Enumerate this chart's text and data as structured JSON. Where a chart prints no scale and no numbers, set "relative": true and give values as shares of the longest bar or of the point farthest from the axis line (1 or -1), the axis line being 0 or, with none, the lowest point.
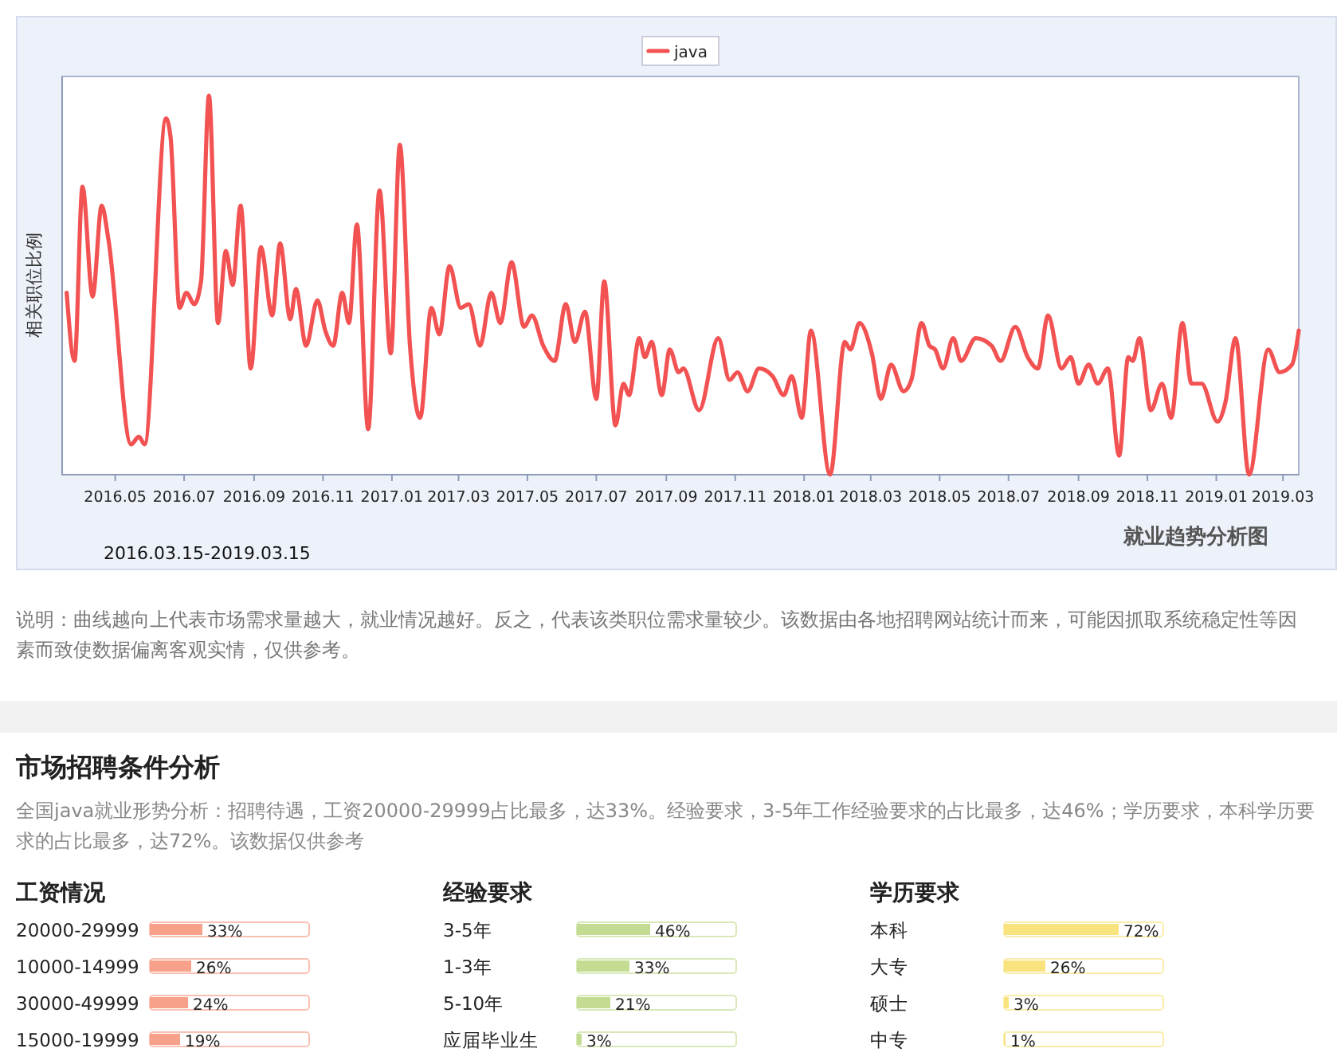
{
  "chart_data": [
    {
      "type": "line",
      "subtitle": "就业趋势分析图",
      "ylabel": "相关职位比例",
      "relative": true,
      "legend": "top",
      "annotations": [
        "2016.03.15-2019.03.15",
        "说明：曲线越向上代表市场需求量越大，就业情况越好。反之，代表该类职位需求量较少。该数据由各地招聘网站统计而来，可能因抓取系统稳定性等因素而致使数据偏离客观实情，仅供参考。"
      ],
      "xlim": [
        "2016-03-15",
        "2019-03-15"
      ],
      "xticks": [
        {
          "value": "2016-05",
          "label": "2016.05"
        },
        {
          "value": "2016-07",
          "label": "2016.07"
        },
        {
          "value": "2016-09",
          "label": "2016.09"
        },
        {
          "value": "2016-11",
          "label": "2016.11"
        },
        {
          "value": "2017-01",
          "label": "2017.01"
        },
        {
          "value": "2017-03",
          "label": "2017.03"
        },
        {
          "value": "2017-05",
          "label": "2017.05"
        },
        {
          "value": "2017-07",
          "label": "2017.07"
        },
        {
          "value": "2017-09",
          "label": "2017.09"
        },
        {
          "value": "2017-11",
          "label": "2017.11"
        },
        {
          "value": "2018-01",
          "label": "2018.01"
        },
        {
          "value": "2018-03",
          "label": "2018.03"
        },
        {
          "value": "2018-05",
          "label": "2018.05"
        },
        {
          "value": "2018-07",
          "label": "2018.07"
        },
        {
          "value": "2018-09",
          "label": "2018.09"
        },
        {
          "value": "2018-11",
          "label": "2018.11"
        },
        {
          "value": "2019-01",
          "label": "2019.01"
        },
        {
          "value": "2019-03",
          "label": "2019.03"
        }
      ],
      "x": [
        "2016-03-19",
        "2016-03-26",
        "2016-04-02",
        "2016-04-11",
        "2016-04-19",
        "2016-04-25",
        "2016-05-15",
        "2016-05-22",
        "2016-05-27",
        "2016-06-15",
        "2016-06-19",
        "2016-06-27",
        "2016-07-03",
        "2016-07-10",
        "2016-07-16",
        "2016-07-23",
        "2016-07-31",
        "2016-08-07",
        "2016-08-13",
        "2016-08-20",
        "2016-08-29",
        "2016-09-07",
        "2016-09-17",
        "2016-09-24",
        "2016-10-03",
        "2016-10-08",
        "2016-10-17",
        "2016-10-27",
        "2016-11-03",
        "2016-11-10",
        "2016-11-18",
        "2016-11-24",
        "2016-12-01",
        "2016-12-11",
        "2016-12-21",
        "2016-12-31",
        "2017-01-08",
        "2017-01-17",
        "2017-01-26",
        "2017-02-05",
        "2017-02-12",
        "2017-02-21",
        "2017-03-03",
        "2017-03-10",
        "2017-03-20",
        "2017-03-30",
        "2017-04-07",
        "2017-04-17",
        "2017-04-28",
        "2017-05-05",
        "2017-05-15",
        "2017-05-25",
        "2017-06-04",
        "2017-06-12",
        "2017-06-21",
        "2017-07-01",
        "2017-07-08",
        "2017-07-18",
        "2017-07-25",
        "2017-07-30",
        "2017-08-08",
        "2017-08-13",
        "2017-08-19",
        "2017-08-28",
        "2017-09-04",
        "2017-09-12",
        "2017-09-16",
        "2017-09-30",
        "2017-10-17",
        "2017-10-27",
        "2017-11-03",
        "2017-11-12",
        "2017-11-22",
        "2017-12-04",
        "2017-12-14",
        "2017-12-21",
        "2017-12-30",
        "2018-01-07",
        "2018-01-24",
        "2018-02-06",
        "2018-02-11",
        "2018-02-19",
        "2018-03-02",
        "2018-03-10",
        "2018-03-19",
        "2018-03-30",
        "2018-04-06",
        "2018-04-15",
        "2018-04-22",
        "2018-04-27",
        "2018-05-04",
        "2018-05-13",
        "2018-05-20",
        "2018-06-02",
        "2018-06-16",
        "2018-06-24",
        "2018-07-07",
        "2018-07-18",
        "2018-07-27",
        "2018-08-05",
        "2018-08-17",
        "2018-08-25",
        "2018-09-01",
        "2018-09-10",
        "2018-09-18",
        "2018-09-27",
        "2018-10-07",
        "2018-10-15",
        "2018-10-19",
        "2018-10-25",
        "2018-11-04",
        "2018-11-14",
        "2018-11-22",
        "2018-12-02",
        "2018-12-10",
        "2018-12-19",
        "2019-01-02",
        "2019-01-09",
        "2019-01-18",
        "2019-01-30",
        "2019-02-16",
        "2019-02-26",
        "2019-03-09",
        "2019-03-15"
      ],
      "series": [
        {
          "name": "java",
          "color": "#f25252",
          "values": [
            0.48,
            0.3,
            0.76,
            0.47,
            0.71,
            0.62,
            0.08,
            0.1,
            0.08,
            0.94,
            0.89,
            0.44,
            0.48,
            0.45,
            0.51,
            1.0,
            0.4,
            0.59,
            0.5,
            0.71,
            0.28,
            0.6,
            0.42,
            0.61,
            0.41,
            0.49,
            0.34,
            0.46,
            0.38,
            0.34,
            0.48,
            0.4,
            0.66,
            0.12,
            0.75,
            0.32,
            0.87,
            0.34,
            0.15,
            0.44,
            0.37,
            0.55,
            0.44,
            0.45,
            0.34,
            0.48,
            0.4,
            0.56,
            0.39,
            0.42,
            0.34,
            0.3,
            0.45,
            0.35,
            0.43,
            0.2,
            0.51,
            0.13,
            0.24,
            0.21,
            0.36,
            0.31,
            0.35,
            0.21,
            0.33,
            0.27,
            0.28,
            0.17,
            0.36,
            0.25,
            0.27,
            0.22,
            0.28,
            0.26,
            0.21,
            0.26,
            0.15,
            0.38,
            0,
            0.35,
            0.33,
            0.4,
            0.32,
            0.2,
            0.29,
            0.22,
            0.25,
            0.4,
            0.34,
            0.33,
            0.28,
            0.36,
            0.3,
            0.36,
            0.34,
            0.3,
            0.39,
            0.31,
            0.28,
            0.42,
            0.28,
            0.31,
            0.24,
            0.29,
            0.24,
            0.28,
            0.05,
            0.31,
            0.3,
            0.36,
            0.17,
            0.24,
            0.15,
            0.4,
            0.24,
            0.24,
            0.14,
            0.19,
            0.36,
            0,
            0.33,
            0.27,
            0.29,
            0.38
          ]
        }
      ]
    },
    {
      "type": "other",
      "title": "市场招聘条件分析",
      "annotations": [
        "全国java就业形势分析：招聘待遇，工资20000-29999占比最多，达33%。经验要求，3-5年工作经验要求的占比最多，达46%；学历要求，本科学历要求的占比最多，达72%。该数据仅供参考"
      ]
    },
    {
      "type": "bar",
      "orientation": "horizontal",
      "title": "工资情况",
      "categories": [
        "20000-29999",
        "10000-14999",
        "30000-49999",
        "15000-19999"
      ],
      "values": [
        33,
        26,
        24,
        19
      ],
      "value_labels": [
        "33%",
        "26%",
        "24%",
        "19%"
      ],
      "color": "#f7a08a"
    },
    {
      "type": "bar",
      "orientation": "horizontal",
      "title": "经验要求",
      "categories": [
        "3-5年",
        "1-3年",
        "5-10年",
        "应届毕业生"
      ],
      "values": [
        46,
        33,
        21,
        3
      ],
      "value_labels": [
        "46%",
        "33%",
        "21%",
        "3%"
      ],
      "color": "#c3dc92"
    },
    {
      "type": "bar",
      "orientation": "horizontal",
      "title": "学历要求",
      "categories": [
        "本科",
        "大专",
        "硕士",
        "中专"
      ],
      "values": [
        72,
        26,
        3,
        1
      ],
      "value_labels": [
        "72%",
        "26%",
        "3%",
        "1%"
      ],
      "color": "#f8e37e"
    }
  ]
}
